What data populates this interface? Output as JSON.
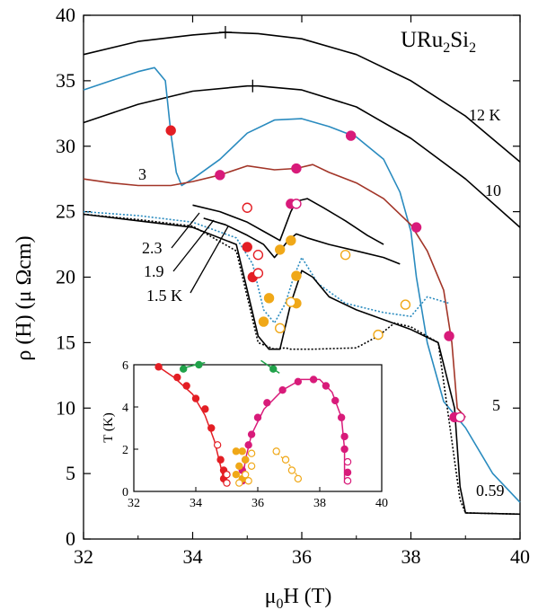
{
  "chart_data": [
    {
      "type": "line",
      "title": "",
      "material_label": {
        "base": "URu",
        "sub1": "2",
        "mid": "Si",
        "sub2": "2"
      },
      "xlabel": {
        "prefix": "μ",
        "sub": "0",
        "suffix": "H (T)"
      },
      "ylabel": "ρ (H) (μ Ωcm)",
      "xlim": [
        32,
        40
      ],
      "ylim": [
        0,
        40
      ],
      "xticks": [
        32,
        34,
        36,
        38,
        40
      ],
      "yticks": [
        0,
        5,
        10,
        15,
        20,
        25,
        30,
        35,
        40
      ],
      "grid": false,
      "curve_labels": [
        "12 K",
        "10",
        "5",
        "3",
        "2.3",
        "1.9",
        "1.5 K",
        "0.59"
      ],
      "series": [
        {
          "name": "12 K",
          "color": "#000000",
          "style": "solid",
          "x": [
            32,
            33,
            34,
            34.6,
            35.2,
            36,
            37,
            38,
            39,
            40
          ],
          "y": [
            37.0,
            38.0,
            38.5,
            38.7,
            38.6,
            38.2,
            37.0,
            35.0,
            32.3,
            28.8
          ]
        },
        {
          "name": "10",
          "color": "#000000",
          "style": "solid",
          "x": [
            32,
            33,
            34,
            35,
            35.2,
            36,
            37,
            38,
            39,
            40
          ],
          "y": [
            31.8,
            33.2,
            34.2,
            34.6,
            34.6,
            34.3,
            33.0,
            30.6,
            27.5,
            23.8
          ]
        },
        {
          "name": "5",
          "color": "#2a8bbf",
          "style": "solid",
          "x": [
            32,
            32.5,
            33,
            33.3,
            33.5,
            33.6,
            33.7,
            33.8,
            34.0,
            34.5,
            35.0,
            35.5,
            36.0,
            36.5,
            37.0,
            37.5,
            37.8,
            38.0,
            38.1,
            38.3,
            38.6,
            38.8,
            39.0,
            39.5,
            40.0
          ],
          "y": [
            34.3,
            35.0,
            35.7,
            36.0,
            35.0,
            31.0,
            28.0,
            27.0,
            27.5,
            29.0,
            31.0,
            32.0,
            32.1,
            31.5,
            30.7,
            29.0,
            26.5,
            23.5,
            20.0,
            15.0,
            10.5,
            9.5,
            8.5,
            5.0,
            2.8
          ]
        },
        {
          "name": "3",
          "color": "#a23528",
          "style": "solid",
          "x": [
            32,
            32.5,
            33,
            33.6,
            34.0,
            34.5,
            35.0,
            35.5,
            35.9,
            36.2,
            36.5,
            37.0,
            37.5,
            38.0,
            38.3,
            38.6,
            38.75,
            38.85,
            39.0
          ],
          "y": [
            27.5,
            27.2,
            27.0,
            27.0,
            27.3,
            27.8,
            28.5,
            28.2,
            28.3,
            28.6,
            28.0,
            27.2,
            26.0,
            24.0,
            22.0,
            19.0,
            15.0,
            10.0,
            9.3
          ]
        },
        {
          "name": "2.3",
          "color": "#000000",
          "style": "solid",
          "x": [
            34.0,
            34.5,
            35.0,
            35.3,
            35.6,
            35.8,
            35.9,
            36.1,
            36.4,
            36.8,
            37.2,
            37.5
          ],
          "y": [
            25.5,
            25.0,
            24.2,
            23.5,
            22.8,
            25.0,
            25.8,
            26.0,
            25.3,
            24.3,
            23.2,
            22.5
          ]
        },
        {
          "name": "1.9",
          "color": "#000000",
          "style": "solid",
          "x": [
            34.2,
            34.6,
            35.0,
            35.3,
            35.5,
            35.6,
            35.75,
            35.9,
            36.1,
            36.5,
            37.0,
            37.5,
            37.8
          ],
          "y": [
            24.5,
            24.0,
            23.2,
            22.5,
            21.5,
            22.0,
            22.8,
            23.3,
            23.0,
            22.5,
            22.0,
            21.5,
            21.0
          ]
        },
        {
          "name": "1.5 K",
          "color": "#2a8bbf",
          "style": "dotted",
          "x": [
            32,
            33,
            34,
            34.8,
            35.1,
            35.3,
            35.5,
            35.7,
            35.85,
            36.0,
            36.3,
            36.8,
            37.5,
            38.0,
            38.3,
            38.7
          ],
          "y": [
            25.0,
            24.7,
            24.2,
            23.0,
            21.0,
            17.5,
            16.5,
            18.0,
            20.0,
            21.5,
            19.5,
            18.0,
            17.3,
            17.0,
            18.5,
            18.0
          ]
        },
        {
          "name": "0.59",
          "color": "#000000",
          "style": "solid",
          "x": [
            32,
            33,
            34,
            34.8,
            35.0,
            35.2,
            35.4,
            35.6,
            35.8,
            36.0,
            36.2,
            36.5,
            37.0,
            38.0,
            38.5,
            38.8,
            38.9,
            39.0,
            40.0
          ],
          "y": [
            24.8,
            24.3,
            23.8,
            22.5,
            19.0,
            15.5,
            14.5,
            14.5,
            18.0,
            20.5,
            20.0,
            18.5,
            17.5,
            16.0,
            15.0,
            10.0,
            4.0,
            2.0,
            1.9
          ]
        },
        {
          "name": "0.59",
          "color": "#000000",
          "style": "dotted",
          "x": [
            32,
            33,
            34,
            34.8,
            35.0,
            35.2,
            35.5,
            35.7,
            35.8,
            36.2,
            37.0,
            37.4,
            37.7,
            38.0,
            38.5,
            38.9,
            39.0,
            40.0
          ],
          "y": [
            24.8,
            24.4,
            23.9,
            22.0,
            18.5,
            15.0,
            14.5,
            14.6,
            14.5,
            14.5,
            14.6,
            15.5,
            16.5,
            16.2,
            15.0,
            3.0,
            2.0,
            1.9
          ]
        }
      ],
      "markers": [
        {
          "x": 33.6,
          "y": 31.2,
          "color": "#e31e24",
          "filled": true
        },
        {
          "x": 34.5,
          "y": 27.8,
          "color": "#d81b7a",
          "filled": true
        },
        {
          "x": 35.9,
          "y": 28.3,
          "color": "#d81b7a",
          "filled": true
        },
        {
          "x": 36.9,
          "y": 30.8,
          "color": "#d81b7a",
          "filled": true
        },
        {
          "x": 38.1,
          "y": 23.8,
          "color": "#d81b7a",
          "filled": true
        },
        {
          "x": 38.7,
          "y": 15.5,
          "color": "#d81b7a",
          "filled": true
        },
        {
          "x": 38.8,
          "y": 9.3,
          "color": "#d81b7a",
          "filled": true
        },
        {
          "x": 38.9,
          "y": 9.3,
          "color": "#d81b7a",
          "filled": false
        },
        {
          "x": 35.0,
          "y": 25.3,
          "color": "#e31e24",
          "filled": false
        },
        {
          "x": 35.8,
          "y": 25.6,
          "color": "#d81b7a",
          "filled": true
        },
        {
          "x": 35.9,
          "y": 25.6,
          "color": "#d81b7a",
          "filled": false
        },
        {
          "x": 35.0,
          "y": 22.3,
          "color": "#e31e24",
          "filled": true
        },
        {
          "x": 35.1,
          "y": 20.0,
          "color": "#e31e24",
          "filled": true
        },
        {
          "x": 35.2,
          "y": 21.7,
          "color": "#e31e24",
          "filled": false
        },
        {
          "x": 35.2,
          "y": 20.3,
          "color": "#e31e24",
          "filled": false
        },
        {
          "x": 35.6,
          "y": 22.1,
          "color": "#f0a818",
          "filled": true
        },
        {
          "x": 35.8,
          "y": 22.8,
          "color": "#f0a818",
          "filled": true
        },
        {
          "x": 36.8,
          "y": 21.7,
          "color": "#f0a818",
          "filled": false
        },
        {
          "x": 35.4,
          "y": 18.4,
          "color": "#f0a818",
          "filled": true
        },
        {
          "x": 35.9,
          "y": 20.1,
          "color": "#f0a818",
          "filled": true
        },
        {
          "x": 35.9,
          "y": 18.0,
          "color": "#f0a818",
          "filled": true
        },
        {
          "x": 35.8,
          "y": 18.1,
          "color": "#f0a818",
          "filled": false
        },
        {
          "x": 37.9,
          "y": 17.9,
          "color": "#f0a818",
          "filled": false
        },
        {
          "x": 35.3,
          "y": 16.6,
          "color": "#f0a818",
          "filled": true
        },
        {
          "x": 35.6,
          "y": 16.1,
          "color": "#f0a818",
          "filled": false
        },
        {
          "x": 37.4,
          "y": 15.6,
          "color": "#f0a818",
          "filled": false
        }
      ],
      "plus_markers": [
        {
          "x": 34.6,
          "y": 38.7
        },
        {
          "x": 35.1,
          "y": 34.6
        }
      ]
    },
    {
      "type": "scatter",
      "title": "",
      "xlabel": "",
      "ylabel": "T (K)",
      "xlim": [
        32,
        40
      ],
      "ylim": [
        0,
        6
      ],
      "xticks": [
        32,
        34,
        36,
        38,
        40
      ],
      "yticks": [
        0,
        2,
        4,
        6
      ],
      "grid": false,
      "lines": [
        {
          "color": "#e31e24",
          "x": [
            32.7,
            33.3,
            33.9,
            34.3,
            34.6,
            34.8,
            34.9,
            34.9
          ],
          "y": [
            6.0,
            5.4,
            4.6,
            3.6,
            2.4,
            1.2,
            0.6,
            0.4
          ]
        },
        {
          "color": "#d81b7a",
          "x": [
            35.5,
            35.6,
            35.8,
            36.2,
            36.8,
            37.4,
            38.0,
            38.4,
            38.7,
            38.8,
            38.8
          ],
          "y": [
            0.4,
            1.5,
            2.7,
            3.9,
            4.8,
            5.3,
            5.3,
            4.7,
            3.5,
            2.0,
            0.4
          ]
        },
        {
          "color": "#21a24a",
          "x": [
            33.5,
            34.0,
            34.3
          ],
          "y": [
            5.8,
            6.0,
            6.1
          ]
        },
        {
          "color": "#21a24a",
          "x": [
            36.1,
            36.4,
            36.7
          ],
          "y": [
            6.2,
            5.9,
            5.6
          ]
        }
      ],
      "points": [
        {
          "x": 32.8,
          "y": 5.9,
          "color": "#e31e24",
          "filled": true
        },
        {
          "x": 33.4,
          "y": 5.4,
          "color": "#e31e24",
          "filled": true
        },
        {
          "x": 33.7,
          "y": 5.0,
          "color": "#e31e24",
          "filled": true
        },
        {
          "x": 34.0,
          "y": 4.4,
          "color": "#e31e24",
          "filled": true
        },
        {
          "x": 34.3,
          "y": 3.9,
          "color": "#e31e24",
          "filled": true
        },
        {
          "x": 34.5,
          "y": 3.0,
          "color": "#e31e24",
          "filled": true
        },
        {
          "x": 34.7,
          "y": 2.2,
          "color": "#e31e24",
          "filled": false
        },
        {
          "x": 34.8,
          "y": 1.5,
          "color": "#e31e24",
          "filled": true
        },
        {
          "x": 34.9,
          "y": 1.0,
          "color": "#e31e24",
          "filled": true
        },
        {
          "x": 34.9,
          "y": 0.6,
          "color": "#e31e24",
          "filled": true
        },
        {
          "x": 35.0,
          "y": 0.8,
          "color": "#e31e24",
          "filled": false
        },
        {
          "x": 35.0,
          "y": 0.4,
          "color": "#e31e24",
          "filled": false
        },
        {
          "x": 35.5,
          "y": 0.5,
          "color": "#d81b7a",
          "filled": true
        },
        {
          "x": 35.5,
          "y": 1.0,
          "color": "#d81b7a",
          "filled": true
        },
        {
          "x": 35.6,
          "y": 1.5,
          "color": "#d81b7a",
          "filled": true
        },
        {
          "x": 35.7,
          "y": 2.2,
          "color": "#d81b7a",
          "filled": true
        },
        {
          "x": 35.8,
          "y": 2.7,
          "color": "#d81b7a",
          "filled": true
        },
        {
          "x": 36.0,
          "y": 3.5,
          "color": "#d81b7a",
          "filled": true
        },
        {
          "x": 36.3,
          "y": 4.2,
          "color": "#d81b7a",
          "filled": true
        },
        {
          "x": 36.8,
          "y": 4.8,
          "color": "#d81b7a",
          "filled": true
        },
        {
          "x": 37.3,
          "y": 5.2,
          "color": "#d81b7a",
          "filled": true
        },
        {
          "x": 37.8,
          "y": 5.3,
          "color": "#d81b7a",
          "filled": true
        },
        {
          "x": 38.2,
          "y": 5.0,
          "color": "#d81b7a",
          "filled": true
        },
        {
          "x": 38.5,
          "y": 4.3,
          "color": "#d81b7a",
          "filled": true
        },
        {
          "x": 38.7,
          "y": 3.5,
          "color": "#d81b7a",
          "filled": true
        },
        {
          "x": 38.8,
          "y": 2.6,
          "color": "#d81b7a",
          "filled": true
        },
        {
          "x": 38.8,
          "y": 2.0,
          "color": "#d81b7a",
          "filled": true
        },
        {
          "x": 38.9,
          "y": 1.4,
          "color": "#d81b7a",
          "filled": false
        },
        {
          "x": 38.9,
          "y": 0.9,
          "color": "#d81b7a",
          "filled": true
        },
        {
          "x": 38.9,
          "y": 0.5,
          "color": "#d81b7a",
          "filled": false
        },
        {
          "x": 35.3,
          "y": 1.9,
          "color": "#f0a818",
          "filled": true
        },
        {
          "x": 35.5,
          "y": 1.9,
          "color": "#f0a818",
          "filled": true
        },
        {
          "x": 35.6,
          "y": 1.5,
          "color": "#f0a818",
          "filled": true
        },
        {
          "x": 35.4,
          "y": 1.2,
          "color": "#f0a818",
          "filled": true
        },
        {
          "x": 35.3,
          "y": 0.8,
          "color": "#f0a818",
          "filled": true
        },
        {
          "x": 35.5,
          "y": 0.6,
          "color": "#f0a818",
          "filled": true
        },
        {
          "x": 35.4,
          "y": 0.4,
          "color": "#f0a818",
          "filled": false
        },
        {
          "x": 35.6,
          "y": 0.8,
          "color": "#f0a818",
          "filled": false
        },
        {
          "x": 35.7,
          "y": 0.5,
          "color": "#f0a818",
          "filled": false
        },
        {
          "x": 35.8,
          "y": 1.2,
          "color": "#f0a818",
          "filled": false
        },
        {
          "x": 35.8,
          "y": 1.8,
          "color": "#f0a818",
          "filled": false
        },
        {
          "x": 36.6,
          "y": 1.9,
          "color": "#f0a818",
          "filled": false
        },
        {
          "x": 36.9,
          "y": 1.5,
          "color": "#f0a818",
          "filled": false
        },
        {
          "x": 37.1,
          "y": 1.0,
          "color": "#f0a818",
          "filled": false
        },
        {
          "x": 37.3,
          "y": 0.6,
          "color": "#f0a818",
          "filled": false
        },
        {
          "x": 33.6,
          "y": 5.8,
          "color": "#21a24a",
          "filled": true
        },
        {
          "x": 34.1,
          "y": 6.0,
          "color": "#21a24a",
          "filled": true
        },
        {
          "x": 36.5,
          "y": 5.8,
          "color": "#21a24a",
          "filled": true
        }
      ],
      "dashed_orange": {
        "x": [
          36.5,
          37.0,
          37.4
        ],
        "y": [
          2.0,
          1.3,
          0.5
        ],
        "color": "#f0a818"
      }
    }
  ]
}
